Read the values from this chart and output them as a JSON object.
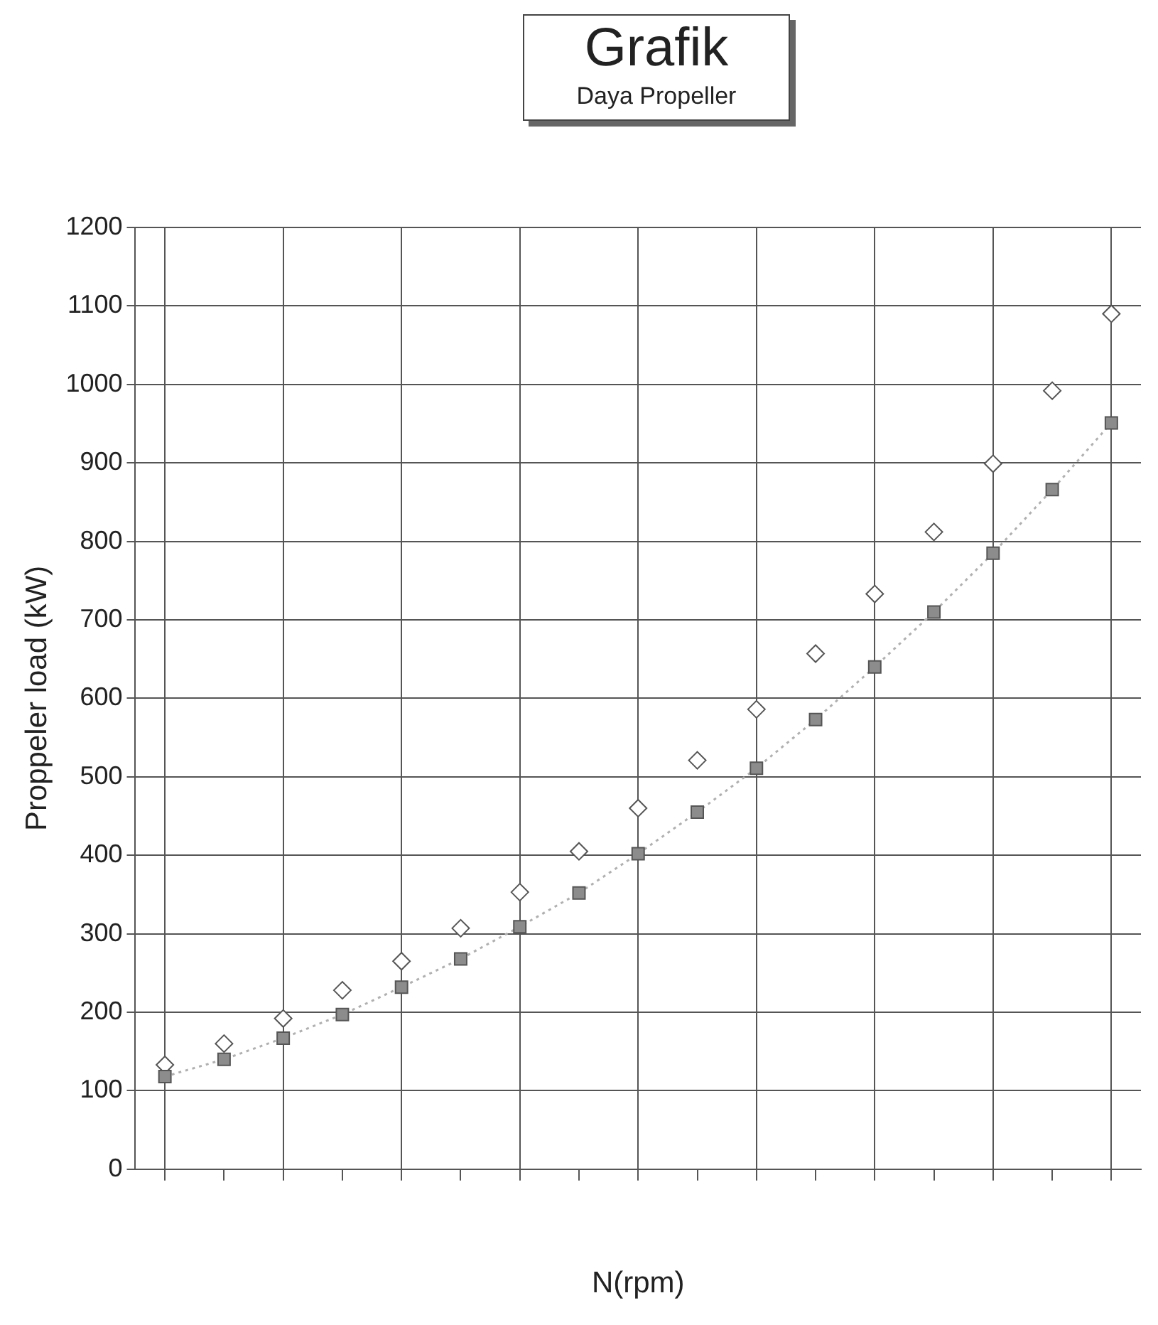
{
  "chart_data": {
    "type": "scatter",
    "title": "Grafik",
    "subtitle": "Daya Propeller",
    "xlabel": "N(rpm)",
    "ylabel": "Proppeler load (kW)",
    "categories": [
      null,
      null,
      null,
      null,
      null,
      null,
      null,
      null,
      null,
      null,
      null,
      null,
      null,
      null,
      null,
      null,
      null
    ],
    "series": [
      {
        "marker": "diamond",
        "color": "#ffffff",
        "values": [
          133,
          160,
          192,
          228,
          265,
          307,
          353,
          405,
          460,
          521,
          586,
          657,
          733,
          812,
          899,
          992,
          1090
        ]
      },
      {
        "type": "line",
        "marker": "square",
        "line_style": "dotted",
        "color": "#8c8c8c",
        "values": [
          118,
          140,
          167,
          197,
          232,
          268,
          309,
          352,
          402,
          455,
          511,
          573,
          640,
          710,
          785,
          866,
          951
        ]
      }
    ],
    "ylim": [
      0,
      1200
    ],
    "yticks": [
      0,
      100,
      200,
      300,
      400,
      500,
      600,
      700,
      800,
      900,
      1000,
      1100,
      1200
    ],
    "grid": true,
    "legend": false
  }
}
